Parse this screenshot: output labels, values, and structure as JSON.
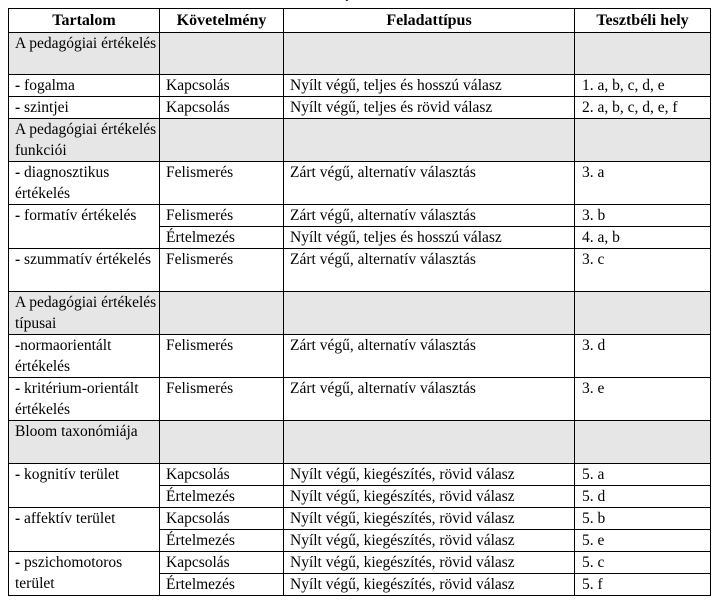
{
  "stray_mark": "ˇ",
  "headers": {
    "content": "Tartalom",
    "requirement": "Követelmény",
    "task_type": "Feladattípus",
    "location": "Tesztbéli hely"
  },
  "sections": [
    {
      "title": "A pedagógiai értékelés",
      "items": [
        {
          "label": "fogalma",
          "rows": [
            {
              "req": "Kapcsolás",
              "type": "Nyílt végű, teljes és hosszú válasz",
              "loc": "1. a, b, c, d, e"
            }
          ]
        },
        {
          "label": "szintjei",
          "rows": [
            {
              "req": "Kapcsolás",
              "type": "Nyílt végű, teljes és rövid válasz",
              "loc": "2. a, b, c, d, e, f"
            }
          ]
        }
      ]
    },
    {
      "title": "A pedagógiai értékelés funkciói",
      "items": [
        {
          "label": "diagnosztikus értékelés",
          "rows": [
            {
              "req": "Felismerés",
              "type": "Zárt végű, alternatív választás",
              "loc": "3. a"
            }
          ]
        },
        {
          "label": "formatív értékelés",
          "rows": [
            {
              "req": "Felismerés",
              "type": "Zárt végű, alternatív választás",
              "loc": "3. b"
            },
            {
              "req": "Értelmezés",
              "type": "Nyílt végű, teljes és hosszú válasz",
              "loc": "4. a, b"
            }
          ]
        },
        {
          "label": "szummatív értékelés",
          "rows": [
            {
              "req": "Felismerés",
              "type": "Zárt végű, alternatív választás",
              "loc": "3. c"
            }
          ]
        }
      ]
    },
    {
      "title": "A pedagógiai értékelés típusai",
      "items": [
        {
          "label": "normaorientált értékelés",
          "rows": [
            {
              "req": "Felismerés",
              "type": "Zárt végű, alternatív választás",
              "loc": "3. d"
            }
          ]
        },
        {
          "label": "kritérium-orientált értékelés",
          "rows": [
            {
              "req": "Felismerés",
              "type": "Zárt végű, alternatív választás",
              "loc": "3. e"
            }
          ]
        }
      ]
    },
    {
      "title": "Bloom taxonómiája",
      "items": [
        {
          "label": "kognitív terület",
          "rows": [
            {
              "req": "Kapcsolás",
              "type": "Nyílt végű, kiegészítés, rövid válasz",
              "loc": "5. a"
            },
            {
              "req": "Értelmezés",
              "type": "Nyílt végű, kiegészítés, rövid válasz",
              "loc": "5. d"
            }
          ]
        },
        {
          "label": "affektív terület",
          "rows": [
            {
              "req": "Kapcsolás",
              "type": "Nyílt végű, kiegészítés, rövid válasz",
              "loc": "5. b"
            },
            {
              "req": "Értelmezés",
              "type": "Nyílt végű, kiegészítés, rövid válasz",
              "loc": "5. e"
            }
          ]
        },
        {
          "label": "pszichomotoros terület",
          "rows": [
            {
              "req": "Kapcsolás",
              "type": "Nyílt végű, kiegészítés, rövid válasz",
              "loc": "5. c"
            },
            {
              "req": "Értelmezés",
              "type": "Nyílt végű, kiegészítés, rövid válasz",
              "loc": "5. f"
            }
          ]
        }
      ]
    }
  ]
}
